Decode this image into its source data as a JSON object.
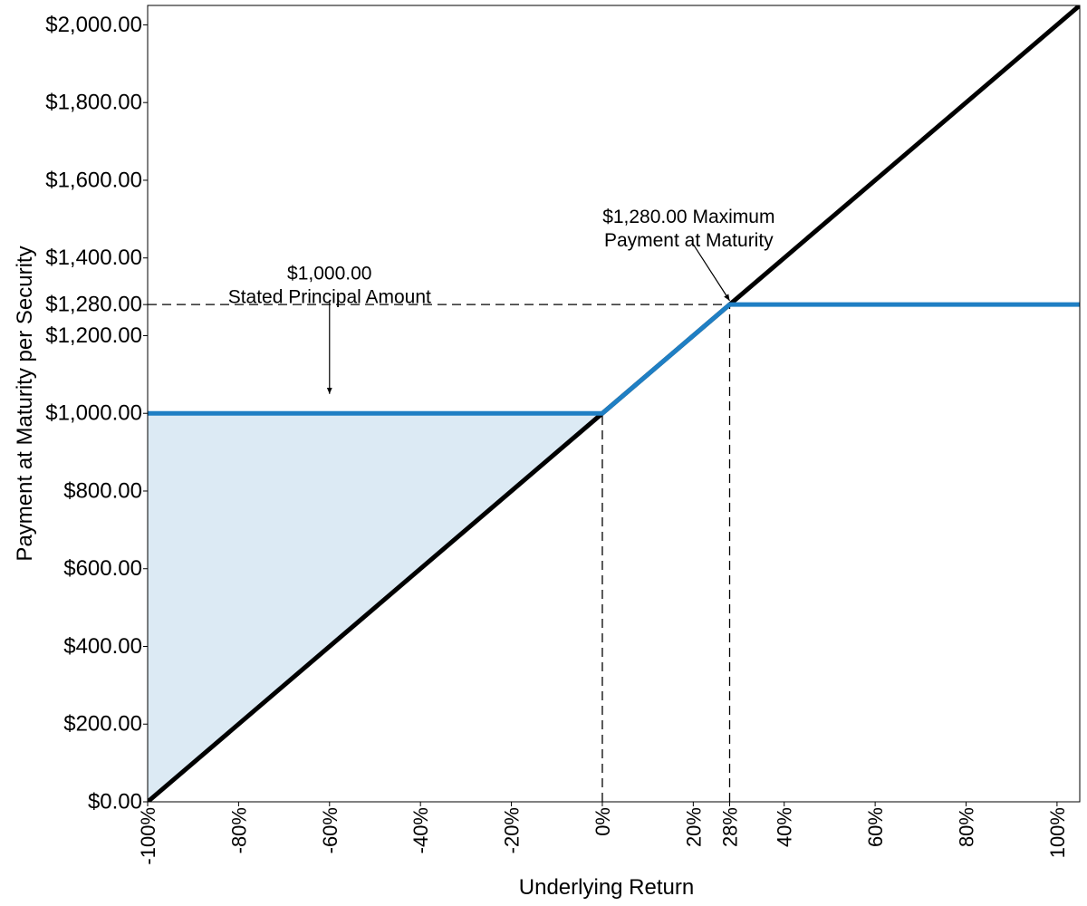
{
  "chart_data": {
    "type": "line",
    "xlabel": "Underlying Return",
    "ylabel": "Payment at Maturity per Security",
    "xlim": [
      -100,
      105
    ],
    "ylim": [
      0,
      2050
    ],
    "grid": false,
    "x_ticks": [
      -100,
      -80,
      -60,
      -40,
      -20,
      0,
      20,
      28,
      40,
      60,
      80,
      100
    ],
    "x_tick_labels": [
      "-100%",
      "-80%",
      "-60%",
      "-40%",
      "-20%",
      "0%",
      "20%",
      "28%",
      "40%",
      "60%",
      "80%",
      "100%"
    ],
    "y_ticks": [
      0,
      200,
      400,
      600,
      800,
      1000,
      1200,
      1280,
      1400,
      1600,
      1800,
      2000
    ],
    "y_tick_labels": [
      "$0.00",
      "$200.00",
      "$400.00",
      "$600.00",
      "$800.00",
      "$1,000.00",
      "$1,200.00",
      "$1,280.00",
      "$1,400.00",
      "$1,600.00",
      "$1,800.00",
      "$2,000.00"
    ],
    "series": [
      {
        "x": [
          -100,
          105
        ],
        "y": [
          0,
          2050
        ],
        "color": "#000000"
      },
      {
        "x": [
          -100,
          0,
          28,
          105
        ],
        "y": [
          1000,
          1000,
          1280,
          1280
        ],
        "color": "#1f7fc4"
      }
    ],
    "shaded_region": {
      "x": [
        -100,
        0
      ],
      "upper": [
        1000,
        1000
      ],
      "lower": [
        0,
        1000
      ],
      "color": "#dceaf4"
    },
    "reference_lines": [
      {
        "from": [
          -100,
          1280
        ],
        "to": [
          28,
          1280
        ]
      },
      {
        "from": [
          0,
          0
        ],
        "to": [
          0,
          1000
        ]
      },
      {
        "from": [
          28,
          0
        ],
        "to": [
          28,
          1280
        ]
      }
    ],
    "annotations": [
      {
        "lines": [
          "$1,000.00",
          "Stated Principal Amount"
        ],
        "text_at": [
          -60,
          1345
        ],
        "arrow_from": [
          -60,
          1290
        ],
        "arrow_to": [
          -60,
          1050
        ]
      },
      {
        "lines": [
          "$1,280.00 Maximum",
          "Payment at Maturity"
        ],
        "text_at": [
          19,
          1490
        ],
        "arrow_from": [
          20,
          1435
        ],
        "arrow_to": [
          28,
          1290
        ]
      }
    ]
  }
}
